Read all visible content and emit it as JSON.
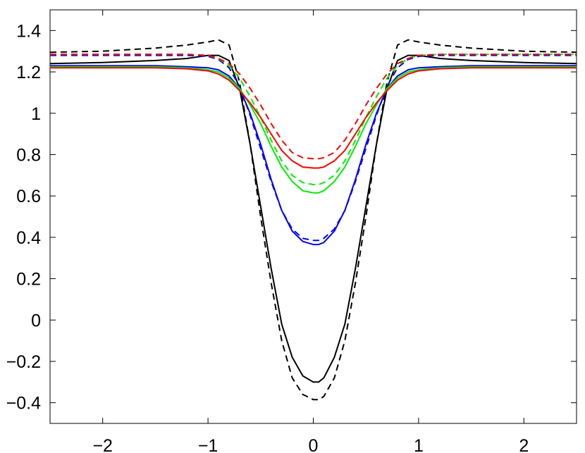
{
  "chart_data": {
    "type": "line",
    "title": "",
    "xlabel": "",
    "ylabel": "",
    "xlim": [
      -2.5,
      2.5
    ],
    "ylim": [
      -0.5,
      1.5
    ],
    "grid": false,
    "xticks": [
      -2,
      -1,
      0,
      1,
      2
    ],
    "yticks": [
      -0.4,
      -0.2,
      0,
      0.2,
      0.4,
      0.6,
      0.8,
      1,
      1.2,
      1.4
    ],
    "xtick_labels": [
      "−2",
      "−1",
      "0",
      "1",
      "2"
    ],
    "ytick_labels": [
      "−0.4",
      "−0.2",
      "0",
      "0.2",
      "0.4",
      "0.6",
      "0.8",
      "1",
      "1.2",
      "1.4"
    ],
    "series": [
      {
        "color": "#000000",
        "dash": false,
        "points": [
          [
            -2.5,
            1.24
          ],
          [
            -2.0,
            1.245
          ],
          [
            -1.5,
            1.255
          ],
          [
            -1.2,
            1.265
          ],
          [
            -1.0,
            1.28
          ],
          [
            -0.9,
            1.28
          ],
          [
            -0.8,
            1.255
          ],
          [
            -0.7,
            1.12
          ],
          [
            -0.6,
            0.85
          ],
          [
            -0.5,
            0.55
          ],
          [
            -0.4,
            0.25
          ],
          [
            -0.3,
            -0.02
          ],
          [
            -0.2,
            -0.18
          ],
          [
            -0.1,
            -0.27
          ],
          [
            0.0,
            -0.3
          ],
          [
            0.05,
            -0.3
          ],
          [
            0.1,
            -0.28
          ],
          [
            0.2,
            -0.18
          ],
          [
            0.3,
            -0.02
          ],
          [
            0.4,
            0.25
          ],
          [
            0.5,
            0.55
          ],
          [
            0.6,
            0.85
          ],
          [
            0.7,
            1.12
          ],
          [
            0.8,
            1.255
          ],
          [
            0.9,
            1.28
          ],
          [
            1.0,
            1.28
          ],
          [
            1.2,
            1.265
          ],
          [
            1.5,
            1.255
          ],
          [
            2.0,
            1.245
          ],
          [
            2.5,
            1.24
          ]
        ]
      },
      {
        "color": "#000000",
        "dash": true,
        "points": [
          [
            -2.5,
            1.295
          ],
          [
            -2.0,
            1.3
          ],
          [
            -1.5,
            1.315
          ],
          [
            -1.2,
            1.33
          ],
          [
            -1.0,
            1.345
          ],
          [
            -0.9,
            1.355
          ],
          [
            -0.8,
            1.33
          ],
          [
            -0.7,
            1.15
          ],
          [
            -0.6,
            0.85
          ],
          [
            -0.5,
            0.5
          ],
          [
            -0.4,
            0.18
          ],
          [
            -0.3,
            -0.1
          ],
          [
            -0.2,
            -0.28
          ],
          [
            -0.1,
            -0.36
          ],
          [
            0.0,
            -0.385
          ],
          [
            0.05,
            -0.385
          ],
          [
            0.1,
            -0.37
          ],
          [
            0.2,
            -0.28
          ],
          [
            0.3,
            -0.1
          ],
          [
            0.4,
            0.18
          ],
          [
            0.5,
            0.5
          ],
          [
            0.6,
            0.85
          ],
          [
            0.7,
            1.15
          ],
          [
            0.8,
            1.33
          ],
          [
            0.9,
            1.355
          ],
          [
            1.0,
            1.345
          ],
          [
            1.2,
            1.33
          ],
          [
            1.5,
            1.315
          ],
          [
            2.0,
            1.3
          ],
          [
            2.5,
            1.295
          ]
        ]
      },
      {
        "color": "#0000ff",
        "dash": false,
        "points": [
          [
            -2.5,
            1.23
          ],
          [
            -1.5,
            1.23
          ],
          [
            -1.2,
            1.225
          ],
          [
            -1.0,
            1.22
          ],
          [
            -0.9,
            1.21
          ],
          [
            -0.8,
            1.18
          ],
          [
            -0.7,
            1.12
          ],
          [
            -0.6,
            1.0
          ],
          [
            -0.5,
            0.85
          ],
          [
            -0.4,
            0.68
          ],
          [
            -0.3,
            0.53
          ],
          [
            -0.2,
            0.43
          ],
          [
            -0.1,
            0.38
          ],
          [
            0.0,
            0.365
          ],
          [
            0.05,
            0.365
          ],
          [
            0.1,
            0.375
          ],
          [
            0.2,
            0.43
          ],
          [
            0.3,
            0.53
          ],
          [
            0.4,
            0.68
          ],
          [
            0.5,
            0.85
          ],
          [
            0.6,
            1.0
          ],
          [
            0.7,
            1.12
          ],
          [
            0.8,
            1.18
          ],
          [
            0.9,
            1.21
          ],
          [
            1.0,
            1.22
          ],
          [
            1.2,
            1.225
          ],
          [
            1.5,
            1.23
          ],
          [
            2.5,
            1.23
          ]
        ]
      },
      {
        "color": "#0000ff",
        "dash": true,
        "points": [
          [
            -2.5,
            1.28
          ],
          [
            -1.5,
            1.28
          ],
          [
            -1.2,
            1.28
          ],
          [
            -1.0,
            1.275
          ],
          [
            -0.9,
            1.26
          ],
          [
            -0.8,
            1.22
          ],
          [
            -0.7,
            1.13
          ],
          [
            -0.6,
            0.99
          ],
          [
            -0.5,
            0.83
          ],
          [
            -0.4,
            0.67
          ],
          [
            -0.3,
            0.53
          ],
          [
            -0.2,
            0.44
          ],
          [
            -0.1,
            0.395
          ],
          [
            0.0,
            0.385
          ],
          [
            0.05,
            0.385
          ],
          [
            0.1,
            0.395
          ],
          [
            0.2,
            0.44
          ],
          [
            0.3,
            0.53
          ],
          [
            0.4,
            0.67
          ],
          [
            0.5,
            0.83
          ],
          [
            0.6,
            0.99
          ],
          [
            0.7,
            1.13
          ],
          [
            0.8,
            1.22
          ],
          [
            0.9,
            1.26
          ],
          [
            1.0,
            1.275
          ],
          [
            1.2,
            1.28
          ],
          [
            1.5,
            1.28
          ],
          [
            2.5,
            1.28
          ]
        ]
      },
      {
        "color": "#00ee00",
        "dash": false,
        "points": [
          [
            -2.5,
            1.225
          ],
          [
            -1.5,
            1.225
          ],
          [
            -1.2,
            1.22
          ],
          [
            -1.0,
            1.21
          ],
          [
            -0.9,
            1.2
          ],
          [
            -0.8,
            1.17
          ],
          [
            -0.7,
            1.12
          ],
          [
            -0.6,
            1.04
          ],
          [
            -0.5,
            0.95
          ],
          [
            -0.4,
            0.84
          ],
          [
            -0.3,
            0.74
          ],
          [
            -0.2,
            0.67
          ],
          [
            -0.1,
            0.625
          ],
          [
            0.0,
            0.615
          ],
          [
            0.05,
            0.615
          ],
          [
            0.1,
            0.625
          ],
          [
            0.2,
            0.67
          ],
          [
            0.3,
            0.74
          ],
          [
            0.4,
            0.84
          ],
          [
            0.5,
            0.95
          ],
          [
            0.6,
            1.04
          ],
          [
            0.7,
            1.12
          ],
          [
            0.8,
            1.17
          ],
          [
            0.9,
            1.2
          ],
          [
            1.0,
            1.21
          ],
          [
            1.2,
            1.22
          ],
          [
            1.5,
            1.225
          ],
          [
            2.5,
            1.225
          ]
        ]
      },
      {
        "color": "#00ee00",
        "dash": true,
        "points": [
          [
            -2.5,
            1.285
          ],
          [
            -1.5,
            1.285
          ],
          [
            -1.2,
            1.285
          ],
          [
            -1.0,
            1.28
          ],
          [
            -0.9,
            1.265
          ],
          [
            -0.8,
            1.23
          ],
          [
            -0.7,
            1.17
          ],
          [
            -0.6,
            1.08
          ],
          [
            -0.5,
            0.98
          ],
          [
            -0.4,
            0.87
          ],
          [
            -0.3,
            0.77
          ],
          [
            -0.2,
            0.7
          ],
          [
            -0.1,
            0.665
          ],
          [
            0.0,
            0.655
          ],
          [
            0.05,
            0.655
          ],
          [
            0.1,
            0.665
          ],
          [
            0.2,
            0.7
          ],
          [
            0.3,
            0.77
          ],
          [
            0.4,
            0.87
          ],
          [
            0.5,
            0.98
          ],
          [
            0.6,
            1.08
          ],
          [
            0.7,
            1.17
          ],
          [
            0.8,
            1.23
          ],
          [
            0.9,
            1.265
          ],
          [
            1.0,
            1.28
          ],
          [
            1.2,
            1.285
          ],
          [
            1.5,
            1.285
          ],
          [
            2.5,
            1.285
          ]
        ]
      },
      {
        "color": "#ff0000",
        "dash": false,
        "points": [
          [
            -2.5,
            1.22
          ],
          [
            -1.5,
            1.22
          ],
          [
            -1.2,
            1.215
          ],
          [
            -1.0,
            1.205
          ],
          [
            -0.9,
            1.19
          ],
          [
            -0.8,
            1.16
          ],
          [
            -0.7,
            1.11
          ],
          [
            -0.6,
            1.05
          ],
          [
            -0.5,
            0.98
          ],
          [
            -0.4,
            0.9
          ],
          [
            -0.3,
            0.82
          ],
          [
            -0.2,
            0.77
          ],
          [
            -0.1,
            0.74
          ],
          [
            0.0,
            0.735
          ],
          [
            0.05,
            0.735
          ],
          [
            0.1,
            0.74
          ],
          [
            0.2,
            0.77
          ],
          [
            0.3,
            0.82
          ],
          [
            0.4,
            0.9
          ],
          [
            0.5,
            0.98
          ],
          [
            0.6,
            1.05
          ],
          [
            0.7,
            1.11
          ],
          [
            0.8,
            1.16
          ],
          [
            0.9,
            1.19
          ],
          [
            1.0,
            1.205
          ],
          [
            1.2,
            1.215
          ],
          [
            1.5,
            1.22
          ],
          [
            2.5,
            1.22
          ]
        ]
      },
      {
        "color": "#ff0000",
        "dash": true,
        "points": [
          [
            -2.5,
            1.285
          ],
          [
            -1.5,
            1.285
          ],
          [
            -1.2,
            1.285
          ],
          [
            -1.0,
            1.28
          ],
          [
            -0.9,
            1.265
          ],
          [
            -0.8,
            1.24
          ],
          [
            -0.7,
            1.19
          ],
          [
            -0.6,
            1.12
          ],
          [
            -0.5,
            1.04
          ],
          [
            -0.4,
            0.95
          ],
          [
            -0.3,
            0.87
          ],
          [
            -0.2,
            0.81
          ],
          [
            -0.1,
            0.785
          ],
          [
            0.0,
            0.78
          ],
          [
            0.05,
            0.78
          ],
          [
            0.1,
            0.785
          ],
          [
            0.2,
            0.81
          ],
          [
            0.3,
            0.87
          ],
          [
            0.4,
            0.95
          ],
          [
            0.5,
            1.04
          ],
          [
            0.6,
            1.12
          ],
          [
            0.7,
            1.19
          ],
          [
            0.8,
            1.24
          ],
          [
            0.9,
            1.265
          ],
          [
            1.0,
            1.28
          ],
          [
            1.2,
            1.285
          ],
          [
            1.5,
            1.285
          ],
          [
            2.5,
            1.285
          ]
        ]
      }
    ]
  }
}
